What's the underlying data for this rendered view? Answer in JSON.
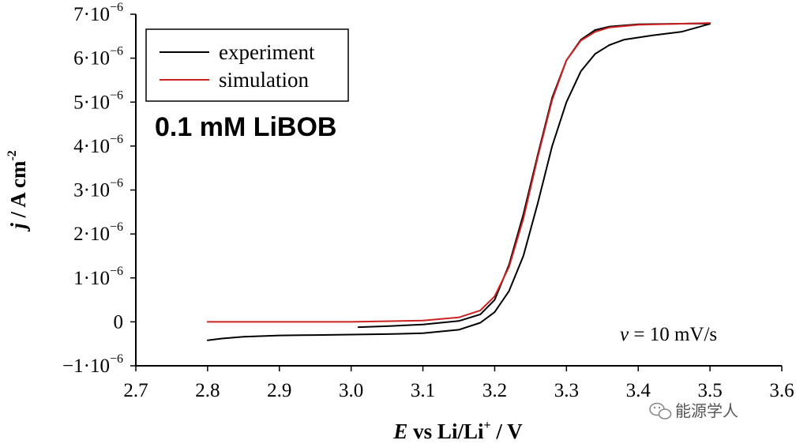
{
  "chart_data": {
    "type": "line",
    "title": "",
    "xlabel_italic": "E",
    "xlabel_rest": " vs Li/Li",
    "xlabel_sup": "+",
    "xlabel_unit": " / V",
    "ylabel_italic": "j",
    "ylabel_rest": " / A cm",
    "ylabel_sup": "-2",
    "xlim": [
      2.7,
      3.6
    ],
    "ylim": [
      -1.0,
      7.0
    ],
    "y_scale_note": "values in units of 1e-6 A cm-2",
    "xticks": [
      2.7,
      2.8,
      2.9,
      3.0,
      3.1,
      3.2,
      3.3,
      3.4,
      3.5,
      3.6
    ],
    "xtick_labels": [
      "2.7",
      "2.8",
      "2.9",
      "3.0",
      "3.1",
      "3.2",
      "3.3",
      "3.4",
      "3.5",
      "3.6"
    ],
    "yticks": [
      -1,
      0,
      1,
      2,
      3,
      4,
      5,
      6,
      7
    ],
    "ytick_labels": [
      {
        "mant": "−1·10",
        "exp": "−6"
      },
      {
        "mant": "0",
        "exp": ""
      },
      {
        "mant": "1·10",
        "exp": "−6"
      },
      {
        "mant": "2·10",
        "exp": "−6"
      },
      {
        "mant": "3·10",
        "exp": "−6"
      },
      {
        "mant": "4·10",
        "exp": "−6"
      },
      {
        "mant": "5·10",
        "exp": "−6"
      },
      {
        "mant": "6·10",
        "exp": "−6"
      },
      {
        "mant": "7·10",
        "exp": "−6"
      }
    ],
    "grid": false,
    "legend_position": "top-left",
    "series": [
      {
        "name": "experiment",
        "color": "#000000",
        "points": [
          [
            2.8,
            -0.42
          ],
          [
            2.82,
            -0.38
          ],
          [
            2.85,
            -0.34
          ],
          [
            2.9,
            -0.31
          ],
          [
            2.95,
            -0.3
          ],
          [
            3.0,
            -0.29
          ],
          [
            3.05,
            -0.28
          ],
          [
            3.1,
            -0.26
          ],
          [
            3.15,
            -0.18
          ],
          [
            3.18,
            -0.02
          ],
          [
            3.2,
            0.22
          ],
          [
            3.22,
            0.7
          ],
          [
            3.24,
            1.5
          ],
          [
            3.26,
            2.7
          ],
          [
            3.28,
            4.0
          ],
          [
            3.3,
            5.0
          ],
          [
            3.32,
            5.7
          ],
          [
            3.34,
            6.1
          ],
          [
            3.36,
            6.3
          ],
          [
            3.38,
            6.42
          ],
          [
            3.42,
            6.52
          ],
          [
            3.46,
            6.6
          ],
          [
            3.5,
            6.78
          ],
          [
            3.48,
            6.79
          ],
          [
            3.44,
            6.78
          ],
          [
            3.4,
            6.77
          ],
          [
            3.36,
            6.72
          ],
          [
            3.34,
            6.64
          ],
          [
            3.32,
            6.42
          ],
          [
            3.3,
            5.95
          ],
          [
            3.28,
            5.1
          ],
          [
            3.26,
            3.8
          ],
          [
            3.24,
            2.45
          ],
          [
            3.22,
            1.3
          ],
          [
            3.2,
            0.5
          ],
          [
            3.18,
            0.17
          ],
          [
            3.15,
            0.02
          ],
          [
            3.1,
            -0.06
          ],
          [
            3.05,
            -0.1
          ],
          [
            3.01,
            -0.12
          ]
        ]
      },
      {
        "name": "simulation",
        "color": "#cc2222",
        "points": [
          [
            2.8,
            0.0
          ],
          [
            2.9,
            0.0
          ],
          [
            3.0,
            0.0
          ],
          [
            3.1,
            0.03
          ],
          [
            3.15,
            0.1
          ],
          [
            3.18,
            0.26
          ],
          [
            3.2,
            0.58
          ],
          [
            3.22,
            1.25
          ],
          [
            3.24,
            2.35
          ],
          [
            3.26,
            3.75
          ],
          [
            3.28,
            5.05
          ],
          [
            3.3,
            5.95
          ],
          [
            3.32,
            6.4
          ],
          [
            3.34,
            6.6
          ],
          [
            3.36,
            6.7
          ],
          [
            3.4,
            6.76
          ],
          [
            3.45,
            6.78
          ],
          [
            3.5,
            6.8
          ]
        ]
      }
    ],
    "annotations": {
      "sample": "0.1 mM LiBOB",
      "rate_italic": "v",
      "rate_rest": " = 10 mV/s"
    }
  },
  "watermark": {
    "text": "能源学人"
  }
}
